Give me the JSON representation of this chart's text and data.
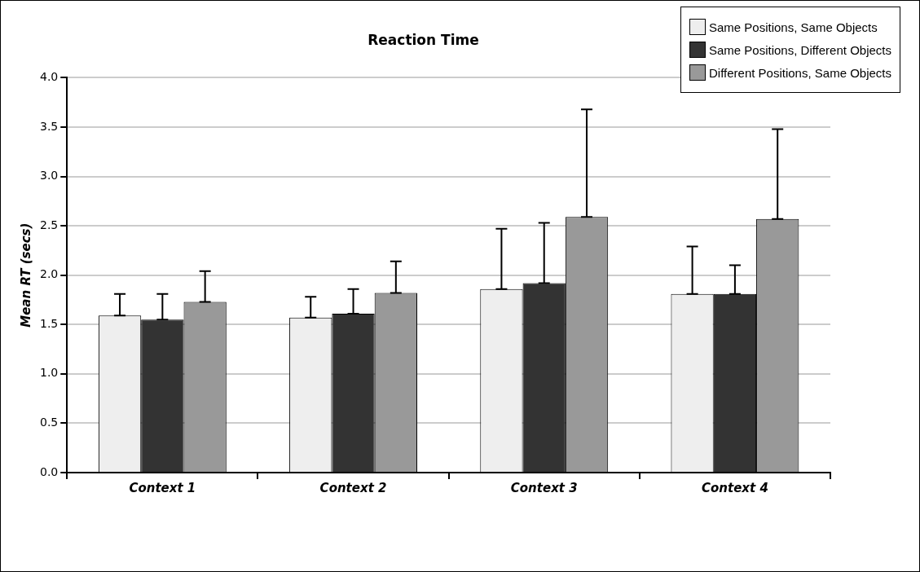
{
  "chart_data": {
    "type": "bar",
    "title": "Reaction Time",
    "ylabel": "Mean RT (secs)",
    "categories": [
      "Context 1",
      "Context 2",
      "Context 3",
      "Context 4"
    ],
    "series": [
      {
        "name": "Same Positions, Same Objects",
        "color": "#eeeeee",
        "values": [
          1.59,
          1.57,
          1.86,
          1.81
        ],
        "errors": [
          [
            1.59,
            1.81
          ],
          [
            1.57,
            1.78
          ],
          [
            1.86,
            2.47
          ],
          [
            1.81,
            2.29
          ]
        ]
      },
      {
        "name": "Same Positions, Different Objects",
        "color": "#333333",
        "values": [
          1.55,
          1.61,
          1.92,
          1.81
        ],
        "errors": [
          [
            1.55,
            1.81
          ],
          [
            1.61,
            1.86
          ],
          [
            1.92,
            2.53
          ],
          [
            1.81,
            2.1
          ]
        ]
      },
      {
        "name": "Different Positions, Same Objects",
        "color": "#999999",
        "values": [
          1.73,
          1.82,
          2.59,
          2.57
        ],
        "errors": [
          [
            1.73,
            2.04
          ],
          [
            1.82,
            2.14
          ],
          [
            2.59,
            3.68
          ],
          [
            2.57,
            3.48
          ]
        ]
      }
    ],
    "ylim": [
      0,
      4
    ],
    "yticks": [
      {
        "value": 0,
        "label": "0.0"
      },
      {
        "value": 0.5,
        "label": "0.5"
      },
      {
        "value": 1,
        "label": "1.0"
      },
      {
        "value": 1.5,
        "label": "1.5"
      },
      {
        "value": 2,
        "label": "2.0"
      },
      {
        "value": 2.5,
        "label": "2.5"
      },
      {
        "value": 3,
        "label": "3.0"
      },
      {
        "value": 3.5,
        "label": "3.5"
      },
      {
        "value": 4,
        "label": "4.0"
      }
    ],
    "grid": "y",
    "legend": "top right"
  }
}
